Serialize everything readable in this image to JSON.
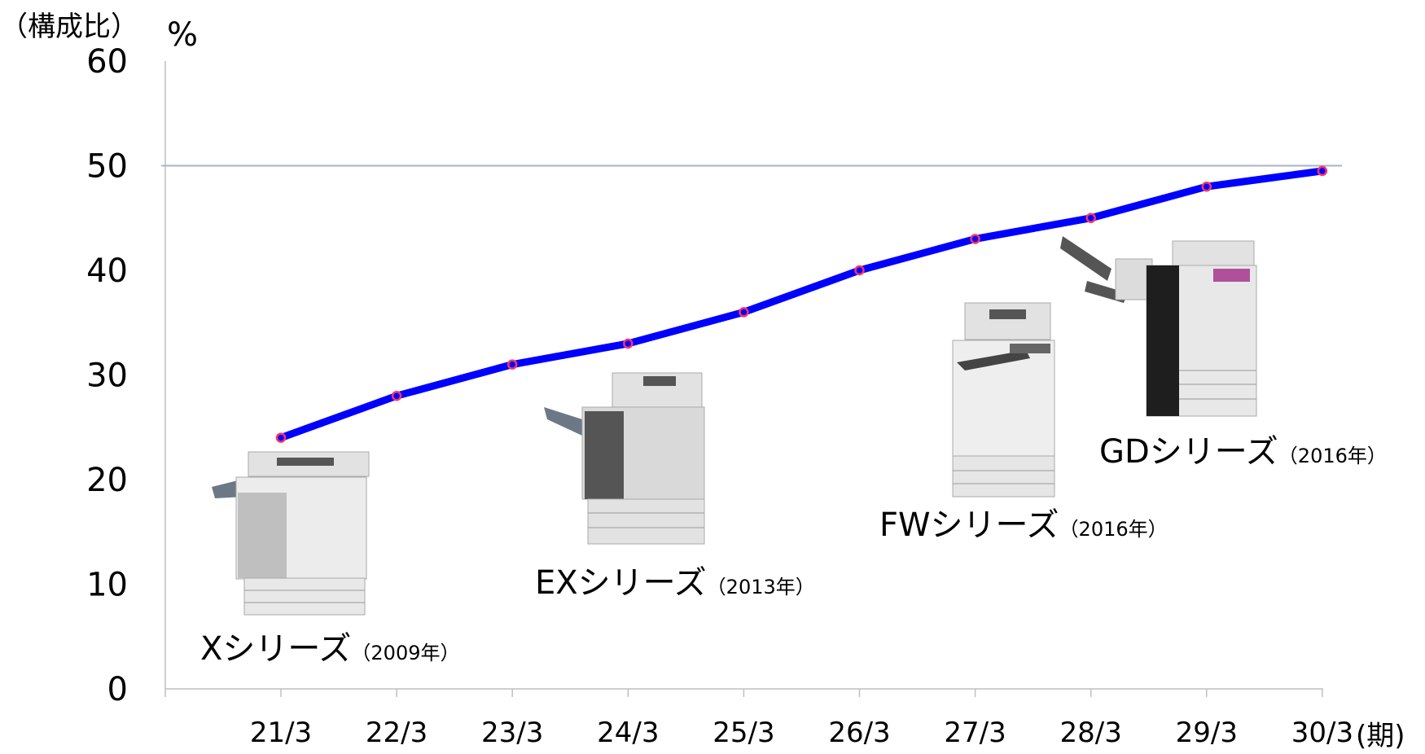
{
  "chart_data": {
    "type": "line",
    "title": "",
    "ylabel_prefix": "（構成比）",
    "ylabel_unit": "%",
    "xlabel": "(期)",
    "categories": [
      "21/3",
      "22/3",
      "23/3",
      "24/3",
      "25/3",
      "26/3",
      "27/3",
      "28/3",
      "29/3",
      "30/3"
    ],
    "series": [
      {
        "values": [
          24,
          28,
          31,
          33,
          36,
          40,
          43,
          45,
          48,
          49.5
        ]
      }
    ],
    "ylim": [
      0,
      60
    ],
    "yticks": [
      0,
      10,
      20,
      30,
      40,
      50,
      60
    ],
    "reference_line": 50,
    "line_color": "#0000ff",
    "marker_color": "#ff3366",
    "reference_color": "#a5b4c8",
    "axis_color": "#bfbfbf",
    "grid": false,
    "annotations": [
      {
        "name": "Xシリーズ",
        "year": "（2009年）",
        "icon": "printer-x-series-icon"
      },
      {
        "name": "EXシリーズ",
        "year": "（2013年）",
        "icon": "printer-ex-series-icon"
      },
      {
        "name": "FWシリーズ",
        "year": "（2016年）",
        "icon": "printer-fw-series-icon"
      },
      {
        "name": "GDシリーズ",
        "year": "（2016年）",
        "icon": "printer-gd-series-icon"
      }
    ]
  }
}
